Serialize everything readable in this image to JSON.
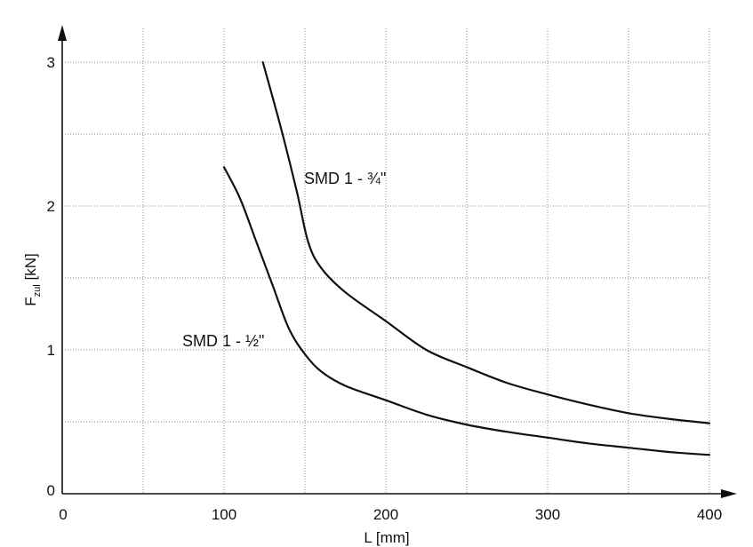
{
  "chart_data": {
    "type": "line",
    "title": "",
    "xlabel": "L [mm]",
    "ylabel_main": "F",
    "ylabel_sub": "zul",
    "ylabel_unit": " [kN]",
    "xlim": [
      0,
      400
    ],
    "ylim": [
      0,
      3
    ],
    "x_ticks": [
      0,
      100,
      200,
      300,
      400
    ],
    "x_tick_labels": [
      "0",
      "100",
      "200",
      "300",
      "400"
    ],
    "y_ticks": [
      0,
      1,
      2,
      3
    ],
    "y_tick_labels": [
      "0",
      "1",
      "2",
      "3"
    ],
    "x_grid": [
      50,
      100,
      150,
      200,
      250,
      300,
      350,
      400
    ],
    "y_grid": [
      0.5,
      1,
      1.5,
      2,
      2.5,
      3
    ],
    "grid": true,
    "legend": "none",
    "series": [
      {
        "name": "SMD 1 - ¾\"",
        "points": [
          [
            124,
            3.0
          ],
          [
            135,
            2.55
          ],
          [
            145,
            2.1
          ],
          [
            152,
            1.75
          ],
          [
            160,
            1.57
          ],
          [
            175,
            1.4
          ],
          [
            200,
            1.2
          ],
          [
            225,
            1.0
          ],
          [
            250,
            0.88
          ],
          [
            275,
            0.77
          ],
          [
            300,
            0.69
          ],
          [
            325,
            0.62
          ],
          [
            350,
            0.56
          ],
          [
            375,
            0.52
          ],
          [
            400,
            0.49
          ]
        ]
      },
      {
        "name": "SMD 1 - ½\"",
        "points": [
          [
            100,
            2.27
          ],
          [
            110,
            2.05
          ],
          [
            120,
            1.75
          ],
          [
            130,
            1.45
          ],
          [
            140,
            1.15
          ],
          [
            150,
            0.97
          ],
          [
            160,
            0.85
          ],
          [
            175,
            0.75
          ],
          [
            200,
            0.65
          ],
          [
            225,
            0.55
          ],
          [
            250,
            0.48
          ],
          [
            275,
            0.43
          ],
          [
            300,
            0.39
          ],
          [
            325,
            0.35
          ],
          [
            350,
            0.32
          ],
          [
            375,
            0.29
          ],
          [
            400,
            0.27
          ]
        ]
      }
    ]
  }
}
